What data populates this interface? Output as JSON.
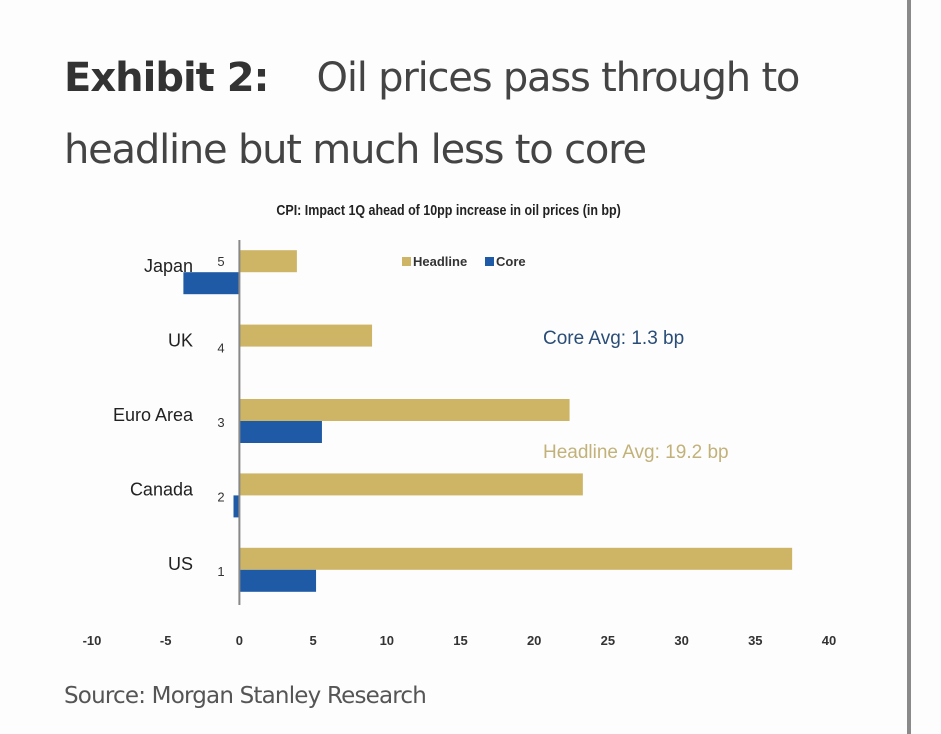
{
  "exhibit": {
    "label": "Exhibit 2:",
    "title_line1": "Oil prices pass through to",
    "title_line2": "headline but much less to core"
  },
  "source": "Source: Morgan Stanley Research",
  "colors": {
    "headline": "#cdb565",
    "core": "#1f5aa6",
    "core_annotation": "#2a4d78",
    "headline_annotation": "#c2b27a"
  },
  "chart_data": {
    "type": "bar",
    "orientation": "horizontal",
    "title": "CPI: Impact 1Q ahead of 10pp increase in oil prices (in bp)",
    "xlabel": "",
    "ylabel": "",
    "categories": [
      "US",
      "Canada",
      "Euro Area",
      "UK",
      "Japan"
    ],
    "category_numbers": [
      "1",
      "2",
      "3",
      "4",
      "5"
    ],
    "series": [
      {
        "name": "Headline",
        "color": "#cdb565",
        "values": [
          37.5,
          23.3,
          22.4,
          9.0,
          3.9
        ]
      },
      {
        "name": "Core",
        "color": "#1f5aa6",
        "values": [
          5.2,
          -0.4,
          5.6,
          0.0,
          -3.8
        ]
      }
    ],
    "xlim": [
      -10,
      40
    ],
    "x_ticks": [
      "-10",
      "-5",
      "0",
      "5",
      "10",
      "15",
      "20",
      "25",
      "30",
      "35",
      "40"
    ],
    "grid": false,
    "legend": {
      "position": "top-center",
      "entries": [
        "Headline",
        "Core"
      ]
    },
    "annotations": [
      {
        "text": "Core Avg: 1.3 bp",
        "series": "Core"
      },
      {
        "text": "Headline Avg: 19.2 bp",
        "series": "Headline"
      }
    ]
  }
}
